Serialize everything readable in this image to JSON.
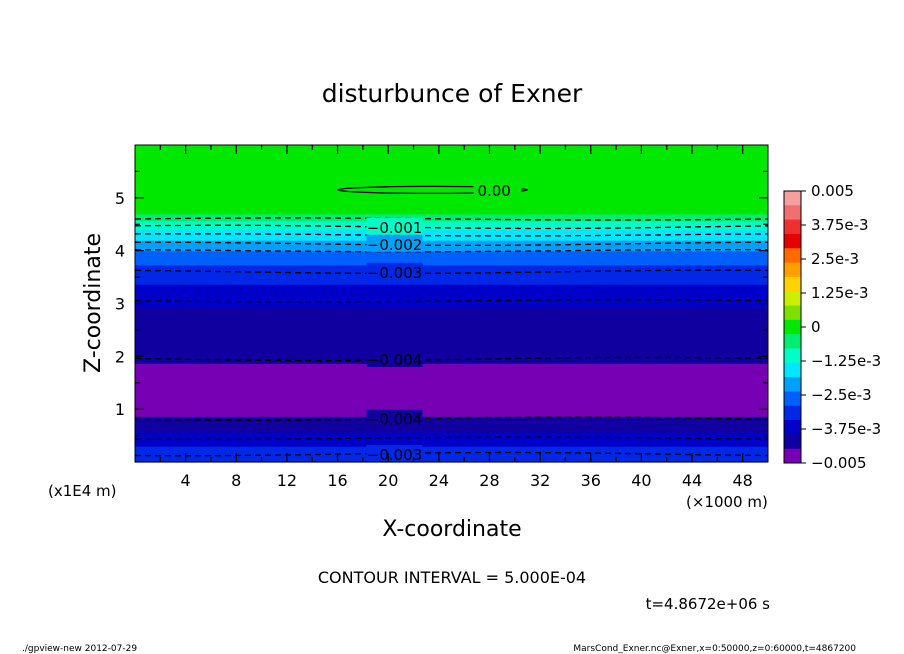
{
  "chart_data": {
    "type": "heatmap",
    "title": "disturbunce of Exner",
    "xlabel": "X-coordinate",
    "ylabel": "Z-coordinate",
    "x_unit": "(×1000 m)",
    "y_unit": "(x1E4 m)",
    "xlim": [
      0,
      50
    ],
    "ylim": [
      0,
      6
    ],
    "x_ticks": [
      4,
      8,
      12,
      16,
      20,
      24,
      28,
      32,
      36,
      40,
      44,
      48
    ],
    "y_ticks": [
      1,
      2,
      3,
      4,
      5
    ],
    "color_scale": {
      "min": -0.005,
      "max": 0.005,
      "labels": [
        "0.005",
        "3.75e-3",
        "2.5e-3",
        "1.25e-3",
        "0",
        "−1.25e-3",
        "−2.5e-3",
        "−3.75e-3",
        "−0.005"
      ],
      "label_values": [
        0.005,
        0.00375,
        0.0025,
        0.00125,
        0,
        -0.00125,
        -0.0025,
        -0.00375,
        -0.005
      ],
      "colors_top_to_bottom": [
        "#f4a0a0",
        "#f07070",
        "#ee3030",
        "#e60000",
        "#ff6a00",
        "#ffa000",
        "#ffd200",
        "#c8f000",
        "#7ee000",
        "#00e800",
        "#00ee70",
        "#00ffc8",
        "#00e6ff",
        "#00a0ff",
        "#0060ff",
        "#0028e6",
        "#0000c8",
        "#1000a0",
        "#7800b4"
      ]
    },
    "profile": {
      "z": [
        0.0,
        0.15,
        0.3,
        0.5,
        0.7,
        0.9,
        1.2,
        1.6,
        2.0,
        2.5,
        3.0,
        3.4,
        3.65,
        3.85,
        4.0,
        4.1,
        4.25,
        4.4,
        4.55,
        4.7,
        4.8,
        5.0,
        5.3,
        6.0
      ],
      "value": [
        -0.003,
        -0.0031,
        -0.0034,
        -0.0038,
        -0.0042,
        -0.0045,
        -0.0047,
        -0.0046,
        -0.0044,
        -0.0042,
        -0.0039,
        -0.0034,
        -0.003,
        -0.0027,
        -0.0024,
        -0.0021,
        -0.0017,
        -0.0013,
        -0.0008,
        -0.0003,
        0.0,
        0.0001,
        0.0002,
        0.0002
      ]
    },
    "contours": [
      {
        "label": "0.00",
        "dashed": false,
        "z": 5.15,
        "x_range": [
          16,
          31
        ]
      },
      {
        "label": "−0.001",
        "dashed": true,
        "z": 4.45
      },
      {
        "label": "−0.002",
        "dashed": true,
        "z": 4.13
      },
      {
        "label": "−0.003",
        "dashed": true,
        "z": 3.6
      },
      {
        "label": "−0.004",
        "dashed": true,
        "z": 1.95
      },
      {
        "label": "−0.004",
        "dashed": true,
        "z": 0.82
      },
      {
        "label": "−0.003",
        "dashed": true,
        "z": 0.15
      }
    ],
    "extra_dashed_z": [
      4.6,
      4.3,
      4.0,
      3.05,
      0.45
    ],
    "contour_interval_text": "CONTOUR INTERVAL = 5.000E-04",
    "time_text": "t=4.8672e+06 s"
  },
  "footer": {
    "left": "./gpview-new   2012-07-29",
    "right": "MarsCond_Exner.nc@Exner,x=0:50000,z=0:60000,t=4867200"
  }
}
